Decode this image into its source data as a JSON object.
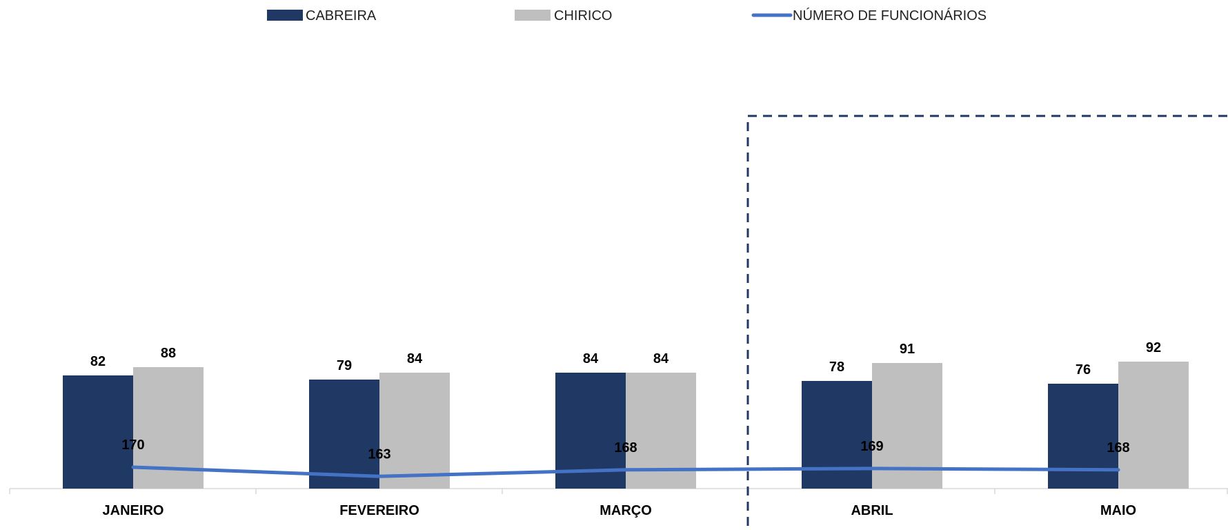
{
  "chart_data": {
    "type": "bar",
    "categories": [
      "JANEIRO",
      "FEVEREIRO",
      "MARÇO",
      "ABRIL",
      "MAIO"
    ],
    "series": [
      {
        "name": "CABREIRA",
        "type": "bar",
        "color": "#203864",
        "values": [
          82,
          79,
          84,
          78,
          76
        ]
      },
      {
        "name": "CHIRICO",
        "type": "bar",
        "color": "#BFBFBF",
        "values": [
          88,
          84,
          84,
          91,
          92
        ]
      },
      {
        "name": "NÚMERO DE FUNCIONÁRIOS",
        "type": "line",
        "color": "#4472C4",
        "values": [
          170,
          163,
          168,
          169,
          168
        ]
      }
    ],
    "legend_position": "top",
    "grid": false,
    "highlight": {
      "categories": [
        "ABRIL",
        "MAIO"
      ],
      "style": "dashed-box",
      "color": "#203864"
    }
  }
}
